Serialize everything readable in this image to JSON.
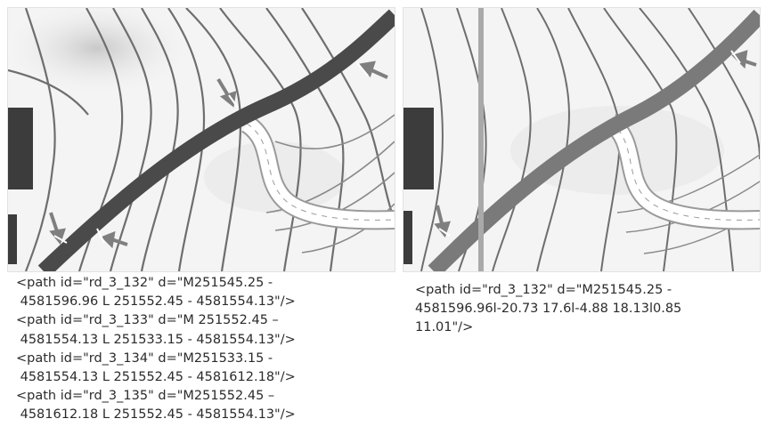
{
  "left_panel": {
    "code_lines": [
      "<path id=\"rd_3_132\" d=\"M251545.25 -",
      " 4581596.96 L 251552.45 - 4581554.13\"/>",
      "<path id=\"rd_3_133\" d=\"M 251552.45 –",
      " 4581554.13 L 251533.15 - 4581554.13\"/>",
      "<path id=\"rd_3_134\" d=\"M251533.15 -",
      " 4581554.13 L 251552.45 - 4581612.18\"/>",
      "<path id=\"rd_3_135\" d=\"M251552.45 –",
      " 4581612.18 L 251552.45 - 4581554.13\"/>"
    ]
  },
  "right_panel": {
    "code_lines": [
      "<path id=\"rd_3_132\" d=\"M251545.25 -",
      "4581596.96l-20.73 17.6l-4.88 18.13l0.85",
      "11.01\"/>"
    ]
  },
  "colors": {
    "background": "#f4f4f4",
    "road_left": "#4a4a4a",
    "road_right": "#7a7a7a",
    "contour": "#6e6e6e",
    "arrow": "#7f7f7f",
    "building": "#3c3c3c",
    "text": "#2b2b2b"
  }
}
